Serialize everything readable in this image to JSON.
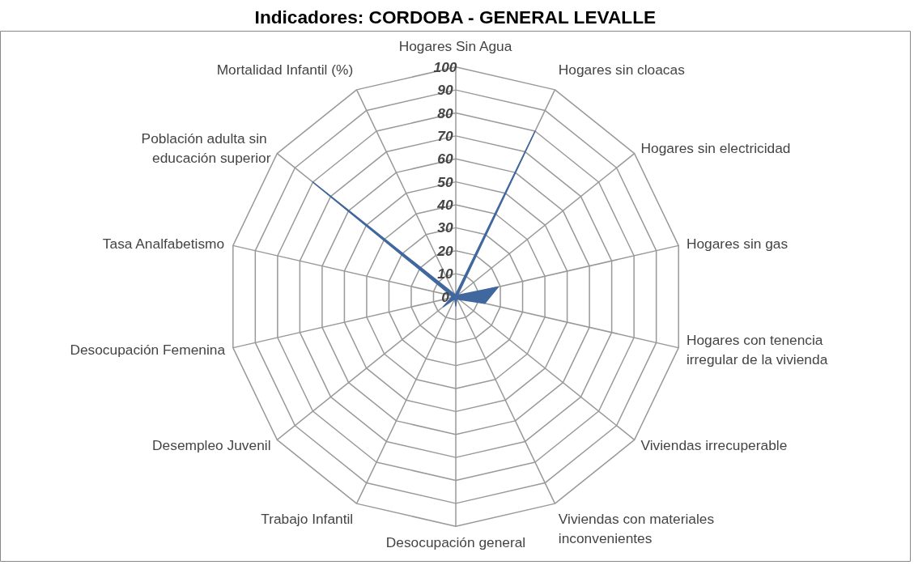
{
  "chart_data": {
    "type": "radar",
    "title": "Indicadores: CORDOBA - GENERAL LEVALLE",
    "categories": [
      "Hogares Sin Agua",
      "Hogares sin cloacas",
      "Hogares sin electricidad",
      "Hogares sin gas",
      "Hogares con tenencia\nirregular de la vivienda",
      "Viviendas irrecuperable",
      "Viviendas con materiales\ninconvenientes",
      "Desocupación general",
      "Trabajo Infantil",
      "Desempleo Juvenil",
      "Desocupación Femenina",
      "Tasa Analfabetismo",
      "Población adulta  sin\neducación superior",
      "Mortalidad Infantil (%)"
    ],
    "series": [
      {
        "color": "#41689e",
        "values": [
          1,
          80,
          1,
          19,
          13,
          2,
          1,
          4,
          1,
          7,
          2,
          2,
          80,
          1
        ]
      }
    ],
    "ylim": [
      0,
      100
    ],
    "yticks": [
      0,
      10,
      20,
      30,
      40,
      50,
      60,
      70,
      80,
      90,
      100
    ],
    "grid": true
  }
}
